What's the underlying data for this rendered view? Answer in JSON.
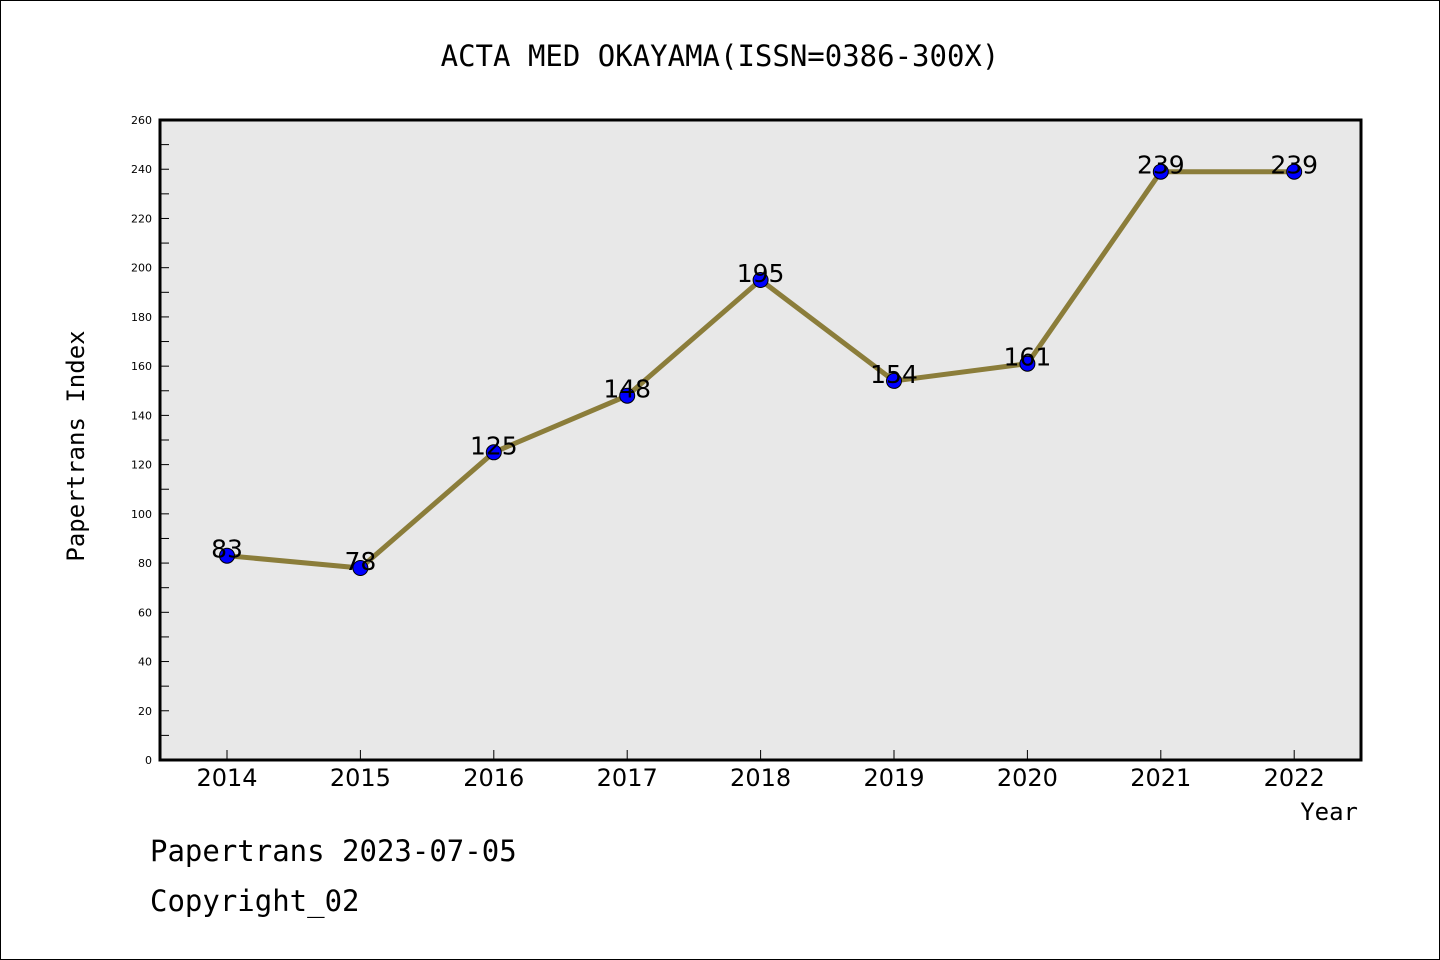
{
  "chart_data": {
    "type": "line",
    "title": "ACTA MED OKAYAMA(ISSN=0386-300X)",
    "xlabel": "Year",
    "ylabel": "Papertrans Index",
    "categories": [
      "2014",
      "2015",
      "2016",
      "2017",
      "2018",
      "2019",
      "2020",
      "2021",
      "2022"
    ],
    "series": [
      {
        "values": [
          83,
          78,
          125,
          148,
          195,
          154,
          161,
          239,
          239
        ]
      }
    ],
    "data_labels": [
      "83",
      "78",
      "125",
      "148",
      "195",
      "154",
      "161",
      "239",
      "239"
    ],
    "ylim": [
      0,
      260
    ],
    "yticks": [
      "0",
      "20",
      "40",
      "60",
      "80",
      "100",
      "120",
      "140",
      "160",
      "180",
      "200",
      "220",
      "240",
      "260"
    ],
    "grid": false,
    "line_color": "#8b7d3a",
    "marker_color": "#0000ff",
    "plot_bg": "#e8e8e8"
  },
  "footer": {
    "line1": "Papertrans 2023-07-05",
    "line2": "Copyright_02"
  }
}
